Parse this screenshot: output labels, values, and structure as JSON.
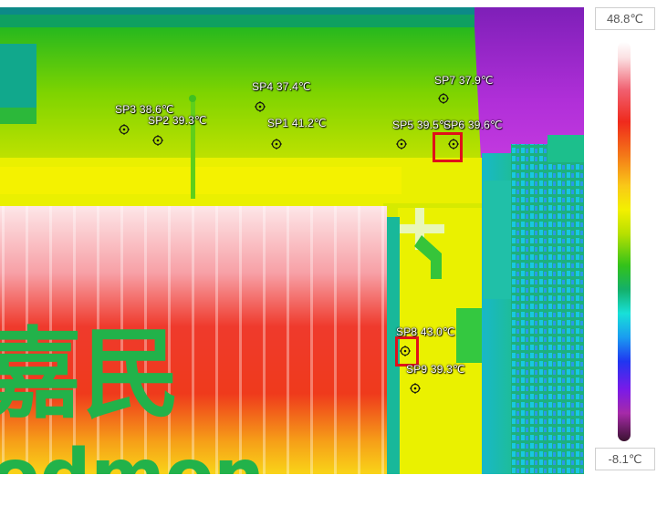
{
  "scale": {
    "max_label": "48.8℃",
    "min_label": "-8.1℃"
  },
  "spots": [
    {
      "id": "SP1",
      "label": "SP1  41.2℃",
      "highlighted": false
    },
    {
      "id": "SP2",
      "label": "SP2  39.3℃",
      "highlighted": false
    },
    {
      "id": "SP3",
      "label": "SP3  38.6℃",
      "highlighted": false
    },
    {
      "id": "SP4",
      "label": "SP4  37.4℃",
      "highlighted": false
    },
    {
      "id": "SP5",
      "label": "SP5  39.5℃",
      "highlighted": false
    },
    {
      "id": "SP6",
      "label": "SP6  39.6℃",
      "highlighted": true
    },
    {
      "id": "SP7",
      "label": "SP7  37.9℃",
      "highlighted": false
    },
    {
      "id": "SP8",
      "label": "SP8  43.0℃",
      "highlighted": true
    },
    {
      "id": "SP9",
      "label": "SP9  39.3℃",
      "highlighted": false
    }
  ],
  "sign_text": {
    "chars": "嘉民",
    "partial": "odmon"
  },
  "colors": {
    "highlight": "#e0101a",
    "marker": "#111111"
  },
  "icons": {
    "spot_marker": "crosshair-circle-icon"
  }
}
